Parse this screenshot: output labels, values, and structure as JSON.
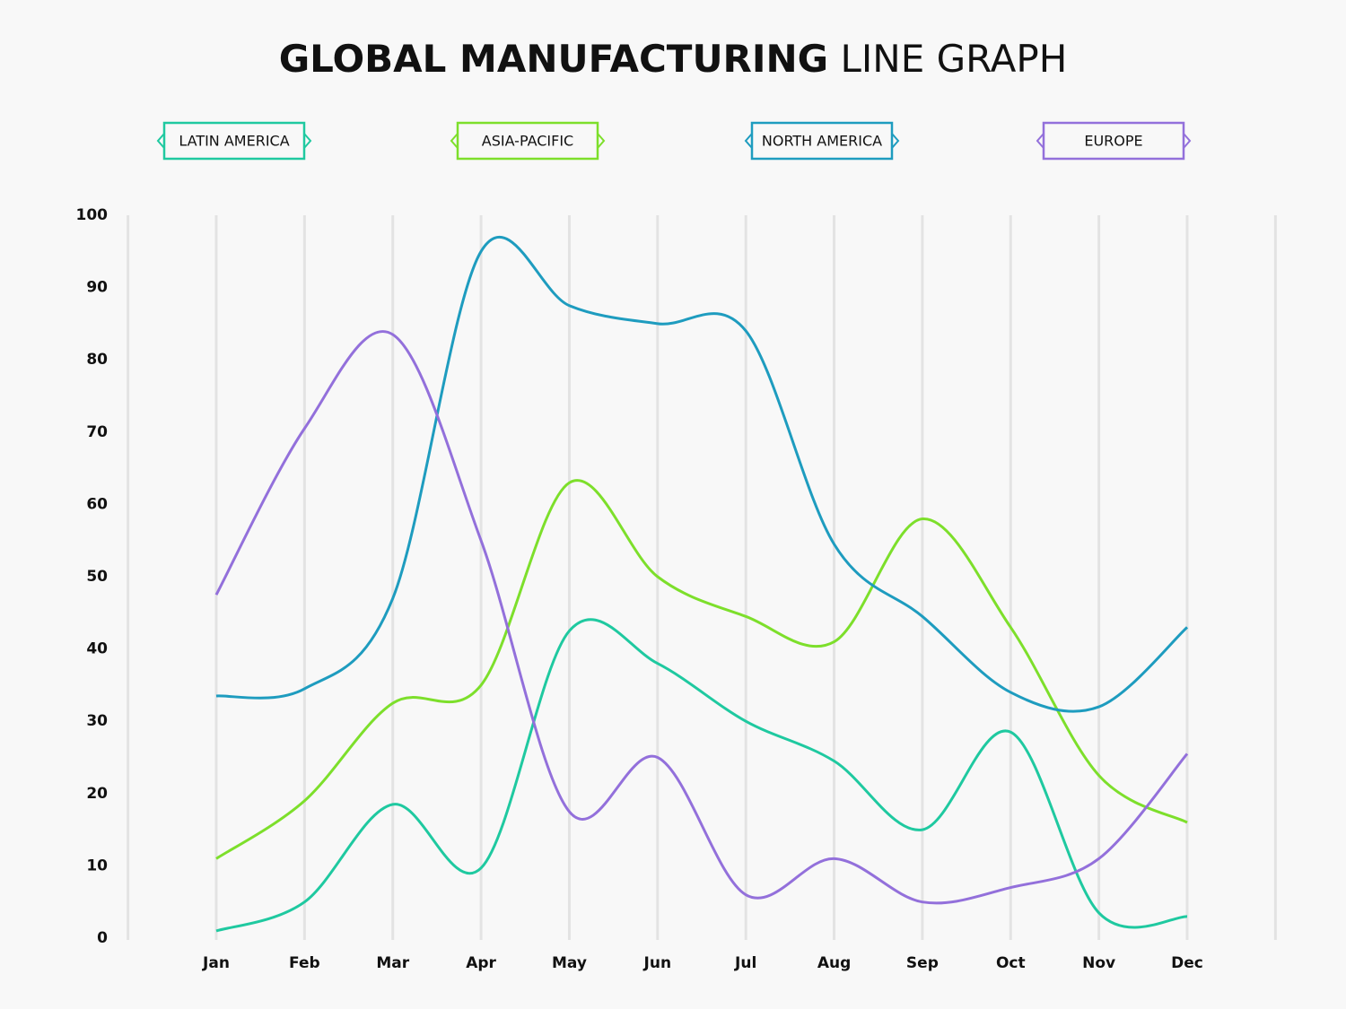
{
  "chart_data": {
    "type": "line",
    "title": [
      "GLOBAL MANUFACTURING",
      "LINE GRAPH"
    ],
    "categories": [
      "Jan",
      "Feb",
      "Mar",
      "Apr",
      "May",
      "Jun",
      "Jul",
      "Aug",
      "Sep",
      "Oct",
      "Nov",
      "Dec"
    ],
    "series": [
      {
        "name": "LATIN AMERICA",
        "color": "#1fc9a0",
        "values": [
          1,
          5,
          18.5,
          9.7,
          42.5,
          38,
          30,
          24.5,
          15,
          28.5,
          3.5,
          3
        ]
      },
      {
        "name": "ASIA-PACIFIC",
        "color": "#7ddf2b",
        "values": [
          11,
          19,
          32.5,
          35,
          63,
          50,
          44.5,
          41,
          58,
          43,
          22.5,
          16
        ]
      },
      {
        "name": "NORTH AMERICA",
        "color": "#1e9cbf",
        "values": [
          33.5,
          34.5,
          47,
          95,
          87.5,
          85,
          84,
          54.5,
          44.5,
          34,
          32,
          43
        ]
      },
      {
        "name": "EUROPE",
        "color": "#9370db",
        "values": [
          47.5,
          70.5,
          83.5,
          55,
          17.5,
          25,
          6,
          11,
          5,
          7,
          11,
          25.5
        ]
      }
    ],
    "ylim": [
      0,
      100
    ],
    "yticks": [
      0,
      10,
      20,
      30,
      40,
      50,
      60,
      70,
      80,
      90,
      100
    ],
    "grid": true,
    "smooth": true,
    "legend": "top"
  }
}
